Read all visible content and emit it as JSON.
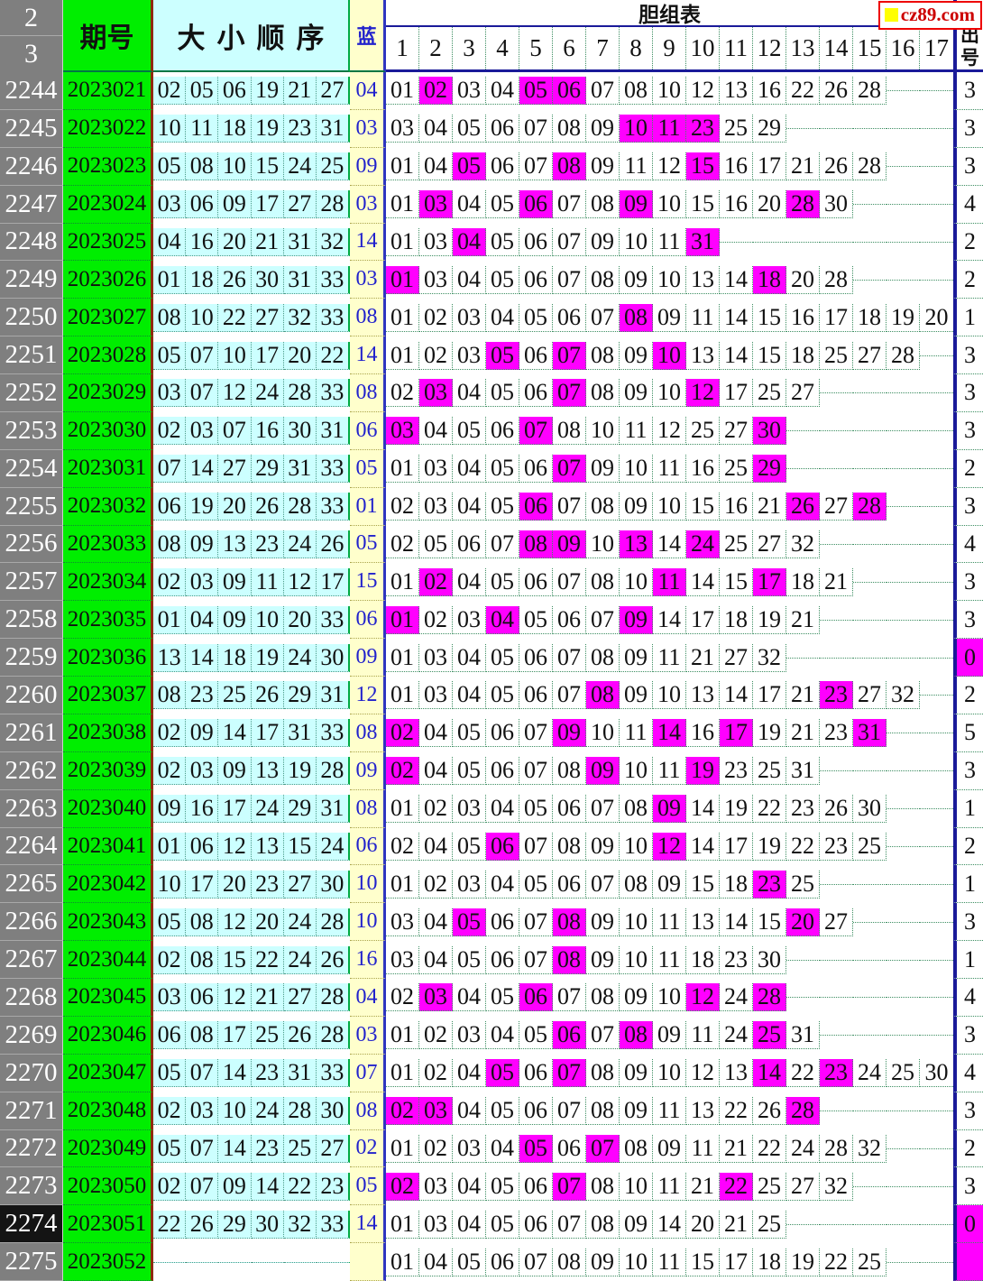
{
  "watermark": {
    "text": "cz89.com"
  },
  "header": {
    "index_top": "2",
    "index_bottom": "3",
    "period_label": "期号",
    "order_label": "大小顺序",
    "blue_label": "蓝",
    "main_title": "胆组表",
    "out_label_top": "出",
    "out_label_bottom": "号",
    "columns": [
      "1",
      "2",
      "3",
      "4",
      "5",
      "6",
      "7",
      "8",
      "9",
      "10",
      "11",
      "12",
      "13",
      "14",
      "15",
      "16",
      "17"
    ]
  },
  "colors": {
    "highlight": "#FF00FF",
    "period_green": "#00EE00",
    "order_cyan": "#CCFFFF",
    "blue_yellow": "#FFFFCC",
    "index_gray": "#7F7F7F",
    "navy_line": "#1A1A99",
    "blue_text": "#2222CC",
    "watermark_red": "#CC0000",
    "watermark_square": "#FFFF00"
  },
  "rows": [
    {
      "index": "2244",
      "period": "2023021",
      "order": [
        "02",
        "05",
        "06",
        "19",
        "21",
        "27"
      ],
      "blue": "04",
      "balls": [
        "01",
        "02",
        "03",
        "04",
        "05",
        "06",
        "07",
        "08",
        "10",
        "12",
        "13",
        "16",
        "22",
        "26",
        "28"
      ],
      "hits": [
        "02",
        "05",
        "06"
      ],
      "count": "3"
    },
    {
      "index": "2245",
      "period": "2023022",
      "order": [
        "10",
        "11",
        "18",
        "19",
        "23",
        "31"
      ],
      "blue": "03",
      "balls": [
        "03",
        "04",
        "05",
        "06",
        "07",
        "08",
        "09",
        "10",
        "11",
        "23",
        "25",
        "29"
      ],
      "hits": [
        "10",
        "11",
        "23"
      ],
      "count": "3"
    },
    {
      "index": "2246",
      "period": "2023023",
      "order": [
        "05",
        "08",
        "10",
        "15",
        "24",
        "25"
      ],
      "blue": "09",
      "balls": [
        "01",
        "04",
        "05",
        "06",
        "07",
        "08",
        "09",
        "11",
        "12",
        "15",
        "16",
        "17",
        "21",
        "26",
        "28"
      ],
      "hits": [
        "05",
        "08",
        "15"
      ],
      "count": "3"
    },
    {
      "index": "2247",
      "period": "2023024",
      "order": [
        "03",
        "06",
        "09",
        "17",
        "27",
        "28"
      ],
      "blue": "03",
      "balls": [
        "01",
        "03",
        "04",
        "05",
        "06",
        "07",
        "08",
        "09",
        "10",
        "15",
        "16",
        "20",
        "28",
        "30"
      ],
      "hits": [
        "03",
        "06",
        "09",
        "28"
      ],
      "count": "4"
    },
    {
      "index": "2248",
      "period": "2023025",
      "order": [
        "04",
        "16",
        "20",
        "21",
        "31",
        "32"
      ],
      "blue": "14",
      "balls": [
        "01",
        "03",
        "04",
        "05",
        "06",
        "07",
        "09",
        "10",
        "11",
        "31"
      ],
      "hits": [
        "04",
        "31"
      ],
      "count": "2"
    },
    {
      "index": "2249",
      "period": "2023026",
      "order": [
        "01",
        "18",
        "26",
        "30",
        "31",
        "33"
      ],
      "blue": "03",
      "balls": [
        "01",
        "03",
        "04",
        "05",
        "06",
        "07",
        "08",
        "09",
        "10",
        "13",
        "14",
        "18",
        "20",
        "28"
      ],
      "hits": [
        "01",
        "18"
      ],
      "count": "2"
    },
    {
      "index": "2250",
      "period": "2023027",
      "order": [
        "08",
        "10",
        "22",
        "27",
        "32",
        "33"
      ],
      "blue": "08",
      "balls": [
        "01",
        "02",
        "03",
        "04",
        "05",
        "06",
        "07",
        "08",
        "09",
        "11",
        "14",
        "15",
        "16",
        "17",
        "18",
        "19",
        "20"
      ],
      "hits": [
        "08"
      ],
      "count": "1"
    },
    {
      "index": "2251",
      "period": "2023028",
      "order": [
        "05",
        "07",
        "10",
        "17",
        "20",
        "22"
      ],
      "blue": "14",
      "balls": [
        "01",
        "02",
        "03",
        "05",
        "06",
        "07",
        "08",
        "09",
        "10",
        "13",
        "14",
        "15",
        "18",
        "25",
        "27",
        "28"
      ],
      "hits": [
        "05",
        "07",
        "10"
      ],
      "count": "3"
    },
    {
      "index": "2252",
      "period": "2023029",
      "order": [
        "03",
        "07",
        "12",
        "24",
        "28",
        "33"
      ],
      "blue": "08",
      "balls": [
        "02",
        "03",
        "04",
        "05",
        "06",
        "07",
        "08",
        "09",
        "10",
        "12",
        "17",
        "25",
        "27"
      ],
      "hits": [
        "03",
        "07",
        "12"
      ],
      "count": "3"
    },
    {
      "index": "2253",
      "period": "2023030",
      "order": [
        "02",
        "03",
        "07",
        "16",
        "30",
        "31"
      ],
      "blue": "06",
      "balls": [
        "03",
        "04",
        "05",
        "06",
        "07",
        "08",
        "10",
        "11",
        "12",
        "25",
        "27",
        "30"
      ],
      "hits": [
        "03",
        "07",
        "30"
      ],
      "count": "3"
    },
    {
      "index": "2254",
      "period": "2023031",
      "order": [
        "07",
        "14",
        "27",
        "29",
        "31",
        "33"
      ],
      "blue": "05",
      "balls": [
        "01",
        "03",
        "04",
        "05",
        "06",
        "07",
        "09",
        "10",
        "11",
        "16",
        "25",
        "29"
      ],
      "hits": [
        "07",
        "29"
      ],
      "count": "2"
    },
    {
      "index": "2255",
      "period": "2023032",
      "order": [
        "06",
        "19",
        "20",
        "26",
        "28",
        "33"
      ],
      "blue": "01",
      "balls": [
        "02",
        "03",
        "04",
        "05",
        "06",
        "07",
        "08",
        "09",
        "10",
        "15",
        "16",
        "21",
        "26",
        "27",
        "28"
      ],
      "hits": [
        "06",
        "26",
        "28"
      ],
      "count": "3"
    },
    {
      "index": "2256",
      "period": "2023033",
      "order": [
        "08",
        "09",
        "13",
        "23",
        "24",
        "26"
      ],
      "blue": "05",
      "balls": [
        "02",
        "05",
        "06",
        "07",
        "08",
        "09",
        "10",
        "13",
        "14",
        "24",
        "25",
        "27",
        "32"
      ],
      "hits": [
        "08",
        "09",
        "13",
        "24"
      ],
      "count": "4"
    },
    {
      "index": "2257",
      "period": "2023034",
      "order": [
        "02",
        "03",
        "09",
        "11",
        "12",
        "17"
      ],
      "blue": "15",
      "balls": [
        "01",
        "02",
        "04",
        "05",
        "06",
        "07",
        "08",
        "10",
        "11",
        "14",
        "15",
        "17",
        "18",
        "21"
      ],
      "hits": [
        "02",
        "11",
        "17"
      ],
      "count": "3"
    },
    {
      "index": "2258",
      "period": "2023035",
      "order": [
        "01",
        "04",
        "09",
        "10",
        "20",
        "33"
      ],
      "blue": "06",
      "balls": [
        "01",
        "02",
        "03",
        "04",
        "05",
        "06",
        "07",
        "09",
        "14",
        "17",
        "18",
        "19",
        "21"
      ],
      "hits": [
        "01",
        "04",
        "09"
      ],
      "count": "3"
    },
    {
      "index": "2259",
      "period": "2023036",
      "order": [
        "13",
        "14",
        "18",
        "19",
        "24",
        "30"
      ],
      "blue": "09",
      "balls": [
        "01",
        "03",
        "04",
        "05",
        "06",
        "07",
        "08",
        "09",
        "11",
        "21",
        "27",
        "32"
      ],
      "hits": [],
      "count": "0",
      "count_hl": true
    },
    {
      "index": "2260",
      "period": "2023037",
      "order": [
        "08",
        "23",
        "25",
        "26",
        "29",
        "31"
      ],
      "blue": "12",
      "balls": [
        "01",
        "03",
        "04",
        "05",
        "06",
        "07",
        "08",
        "09",
        "10",
        "13",
        "14",
        "17",
        "21",
        "23",
        "27",
        "32"
      ],
      "hits": [
        "08",
        "23"
      ],
      "count": "2"
    },
    {
      "index": "2261",
      "period": "2023038",
      "order": [
        "02",
        "09",
        "14",
        "17",
        "31",
        "33"
      ],
      "blue": "08",
      "balls": [
        "02",
        "04",
        "05",
        "06",
        "07",
        "09",
        "10",
        "11",
        "14",
        "16",
        "17",
        "19",
        "21",
        "23",
        "31"
      ],
      "hits": [
        "02",
        "09",
        "14",
        "17",
        "31"
      ],
      "count": "5"
    },
    {
      "index": "2262",
      "period": "2023039",
      "order": [
        "02",
        "03",
        "09",
        "13",
        "19",
        "28"
      ],
      "blue": "09",
      "balls": [
        "02",
        "04",
        "05",
        "06",
        "07",
        "08",
        "09",
        "10",
        "11",
        "19",
        "23",
        "25",
        "31"
      ],
      "hits": [
        "02",
        "09",
        "19"
      ],
      "count": "3"
    },
    {
      "index": "2263",
      "period": "2023040",
      "order": [
        "09",
        "16",
        "17",
        "24",
        "29",
        "31"
      ],
      "blue": "08",
      "balls": [
        "01",
        "02",
        "03",
        "04",
        "05",
        "06",
        "07",
        "08",
        "09",
        "14",
        "19",
        "22",
        "23",
        "26",
        "30"
      ],
      "hits": [
        "09"
      ],
      "count": "1"
    },
    {
      "index": "2264",
      "period": "2023041",
      "order": [
        "01",
        "06",
        "12",
        "13",
        "15",
        "24"
      ],
      "blue": "06",
      "balls": [
        "02",
        "04",
        "05",
        "06",
        "07",
        "08",
        "09",
        "10",
        "12",
        "14",
        "17",
        "19",
        "22",
        "23",
        "25"
      ],
      "hits": [
        "06",
        "12"
      ],
      "count": "2"
    },
    {
      "index": "2265",
      "period": "2023042",
      "order": [
        "10",
        "17",
        "20",
        "23",
        "27",
        "30"
      ],
      "blue": "10",
      "balls": [
        "01",
        "02",
        "03",
        "04",
        "05",
        "06",
        "07",
        "08",
        "09",
        "15",
        "18",
        "23",
        "25"
      ],
      "hits": [
        "23"
      ],
      "count": "1"
    },
    {
      "index": "2266",
      "period": "2023043",
      "order": [
        "05",
        "08",
        "12",
        "20",
        "24",
        "28"
      ],
      "blue": "10",
      "balls": [
        "03",
        "04",
        "05",
        "06",
        "07",
        "08",
        "09",
        "10",
        "11",
        "13",
        "14",
        "15",
        "20",
        "27"
      ],
      "hits": [
        "05",
        "08",
        "20"
      ],
      "count": "3"
    },
    {
      "index": "2267",
      "period": "2023044",
      "order": [
        "02",
        "08",
        "15",
        "22",
        "24",
        "26"
      ],
      "blue": "16",
      "balls": [
        "03",
        "04",
        "05",
        "06",
        "07",
        "08",
        "09",
        "10",
        "11",
        "18",
        "23",
        "30"
      ],
      "hits": [
        "08"
      ],
      "count": "1"
    },
    {
      "index": "2268",
      "period": "2023045",
      "order": [
        "03",
        "06",
        "12",
        "21",
        "27",
        "28"
      ],
      "blue": "04",
      "balls": [
        "02",
        "03",
        "04",
        "05",
        "06",
        "07",
        "08",
        "09",
        "10",
        "12",
        "24",
        "28"
      ],
      "hits": [
        "03",
        "06",
        "12",
        "28"
      ],
      "count": "4"
    },
    {
      "index": "2269",
      "period": "2023046",
      "order": [
        "06",
        "08",
        "17",
        "25",
        "26",
        "28"
      ],
      "blue": "03",
      "balls": [
        "01",
        "02",
        "03",
        "04",
        "05",
        "06",
        "07",
        "08",
        "09",
        "11",
        "24",
        "25",
        "31"
      ],
      "hits": [
        "06",
        "08",
        "25"
      ],
      "count": "3"
    },
    {
      "index": "2270",
      "period": "2023047",
      "order": [
        "05",
        "07",
        "14",
        "23",
        "31",
        "33"
      ],
      "blue": "07",
      "balls": [
        "01",
        "02",
        "04",
        "05",
        "06",
        "07",
        "08",
        "09",
        "10",
        "12",
        "13",
        "14",
        "22",
        "23",
        "24",
        "25",
        "30"
      ],
      "hits": [
        "05",
        "07",
        "14",
        "23"
      ],
      "count": "4"
    },
    {
      "index": "2271",
      "period": "2023048",
      "order": [
        "02",
        "03",
        "10",
        "24",
        "28",
        "30"
      ],
      "blue": "08",
      "balls": [
        "02",
        "03",
        "04",
        "05",
        "06",
        "07",
        "08",
        "09",
        "11",
        "13",
        "22",
        "26",
        "28"
      ],
      "hits": [
        "02",
        "03",
        "28"
      ],
      "count": "3"
    },
    {
      "index": "2272",
      "period": "2023049",
      "order": [
        "05",
        "07",
        "14",
        "23",
        "25",
        "27"
      ],
      "blue": "02",
      "balls": [
        "01",
        "02",
        "03",
        "04",
        "05",
        "06",
        "07",
        "08",
        "09",
        "11",
        "21",
        "22",
        "24",
        "28",
        "32"
      ],
      "hits": [
        "05",
        "07"
      ],
      "count": "2"
    },
    {
      "index": "2273",
      "period": "2023050",
      "order": [
        "02",
        "07",
        "09",
        "14",
        "22",
        "23"
      ],
      "blue": "05",
      "balls": [
        "02",
        "03",
        "04",
        "05",
        "06",
        "07",
        "08",
        "10",
        "11",
        "21",
        "22",
        "25",
        "27",
        "32"
      ],
      "hits": [
        "02",
        "07",
        "22"
      ],
      "count": "3"
    },
    {
      "index": "2274",
      "period": "2023051",
      "order": [
        "22",
        "26",
        "29",
        "30",
        "32",
        "33"
      ],
      "blue": "14",
      "balls": [
        "01",
        "03",
        "04",
        "05",
        "06",
        "07",
        "08",
        "09",
        "14",
        "20",
        "21",
        "25"
      ],
      "hits": [],
      "count": "0",
      "count_hl": true,
      "index_dark": true
    },
    {
      "index": "2275",
      "period": "2023052",
      "order": [
        "",
        "",
        "",
        "",
        "",
        ""
      ],
      "blue": "",
      "balls": [
        "01",
        "04",
        "05",
        "06",
        "07",
        "08",
        "09",
        "10",
        "11",
        "15",
        "17",
        "18",
        "19",
        "22",
        "25"
      ],
      "hits": [],
      "count": "",
      "count_hl": true
    }
  ]
}
